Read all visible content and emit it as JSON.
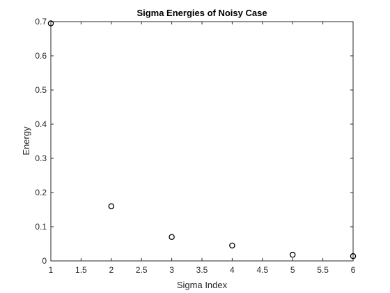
{
  "chart_data": {
    "type": "scatter",
    "title": "Sigma Energies of Noisy Case",
    "xlabel": "Sigma Index",
    "ylabel": "Energy",
    "xlim": [
      1,
      6
    ],
    "ylim": [
      0,
      0.7
    ],
    "xticks": [
      1,
      1.5,
      2,
      2.5,
      3,
      3.5,
      4,
      4.5,
      5,
      5.5,
      6
    ],
    "xtick_labels": [
      "1",
      "1.5",
      "2",
      "2.5",
      "3",
      "3.5",
      "4",
      "4.5",
      "5",
      "5.5",
      "6"
    ],
    "yticks": [
      0,
      0.1,
      0.2,
      0.3,
      0.4,
      0.5,
      0.6,
      0.7
    ],
    "ytick_labels": [
      "0",
      "0.1",
      "0.2",
      "0.3",
      "0.4",
      "0.5",
      "0.6",
      "0.7"
    ],
    "grid": false,
    "marker": "circle-open",
    "marker_color": "#000000",
    "series": [
      {
        "x": [
          1,
          2,
          3,
          4,
          5,
          6
        ],
        "y": [
          0.695,
          0.16,
          0.07,
          0.045,
          0.018,
          0.014
        ]
      }
    ]
  }
}
